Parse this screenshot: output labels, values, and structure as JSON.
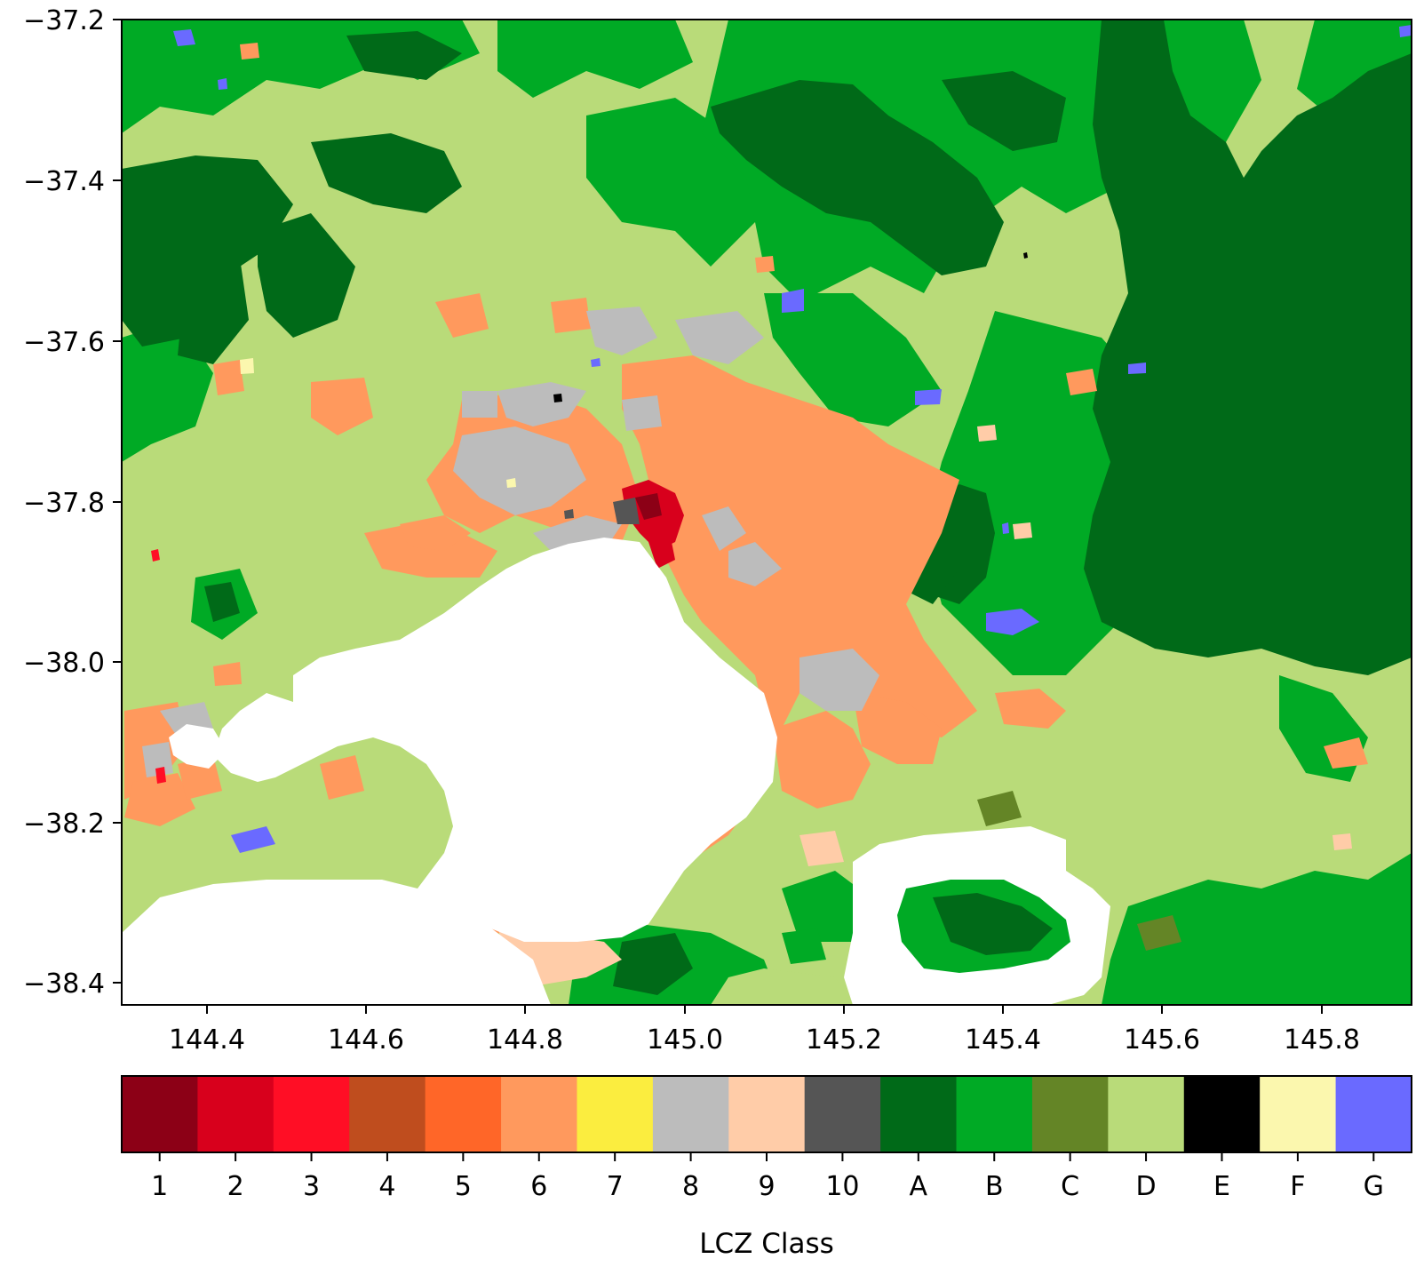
{
  "map": {
    "y_axis": {
      "ticks": [
        "−37.2",
        "−37.4",
        "−37.6",
        "−37.8",
        "−38.0",
        "−38.2",
        "−38.4"
      ],
      "values": [
        -37.2,
        -37.4,
        -37.6,
        -37.8,
        -38.0,
        -38.2,
        -38.4
      ]
    },
    "x_axis": {
      "ticks": [
        "144.4",
        "144.6",
        "144.8",
        "145.0",
        "145.2",
        "145.4",
        "145.6",
        "145.8"
      ],
      "values": [
        144.4,
        144.6,
        144.8,
        145.0,
        145.2,
        145.4,
        145.6,
        145.8
      ]
    },
    "extent": {
      "lon": [
        144.29,
        145.91
      ],
      "lat": [
        -38.43,
        -37.2
      ]
    },
    "colorbar": {
      "title": "LCZ Class",
      "classes": [
        {
          "label": "1",
          "color": "#8c0016"
        },
        {
          "label": "2",
          "color": "#d8001c"
        },
        {
          "label": "3",
          "color": "#ff0e25"
        },
        {
          "label": "4",
          "color": "#bf4d1e"
        },
        {
          "label": "5",
          "color": "#ff6628"
        },
        {
          "label": "6",
          "color": "#ff995d"
        },
        {
          "label": "7",
          "color": "#fbed3f"
        },
        {
          "label": "8",
          "color": "#bcbcbc"
        },
        {
          "label": "9",
          "color": "#ffcca8"
        },
        {
          "label": "10",
          "color": "#555555"
        },
        {
          "label": "A",
          "color": "#006a18"
        },
        {
          "label": "B",
          "color": "#00aa25"
        },
        {
          "label": "C",
          "color": "#648526"
        },
        {
          "label": "D",
          "color": "#b9db79"
        },
        {
          "label": "E",
          "color": "#000000"
        },
        {
          "label": "F",
          "color": "#fbf7ae"
        },
        {
          "label": "G",
          "color": "#6a6aff"
        }
      ]
    }
  }
}
